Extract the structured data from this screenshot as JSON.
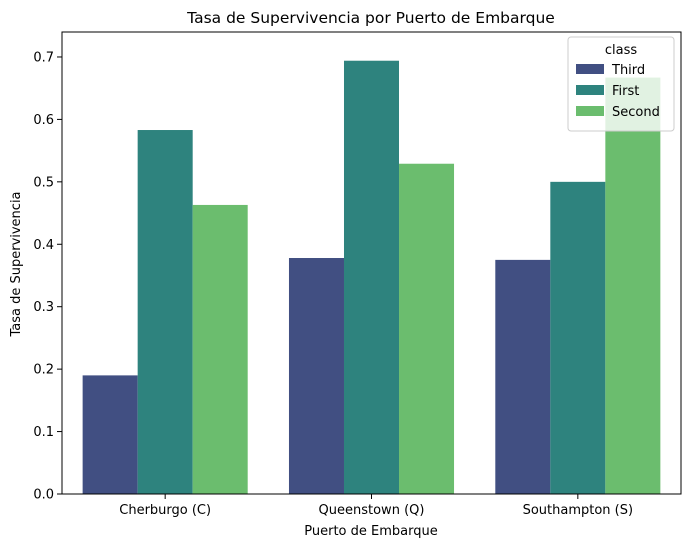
{
  "chart_data": {
    "type": "bar",
    "title": "Tasa de Supervivencia por Puerto de Embarque",
    "xlabel": "Puerto de Embarque",
    "ylabel": "Tasa de Supervivencia",
    "categories": [
      "Cherburgo (C)",
      "Queenstown (Q)",
      "Southampton (S)"
    ],
    "series": [
      {
        "name": "Third",
        "color": "#414f82",
        "values": [
          0.19,
          0.378,
          0.375
        ]
      },
      {
        "name": "First",
        "color": "#2e837e",
        "values": [
          0.583,
          0.694,
          0.5
        ]
      },
      {
        "name": "Second",
        "color": "#6bbd6e",
        "values": [
          0.463,
          0.529,
          0.667
        ]
      }
    ],
    "ylim": [
      0,
      0.74
    ],
    "yticks": [
      0.0,
      0.1,
      0.2,
      0.3,
      0.4,
      0.5,
      0.6,
      0.7
    ],
    "ytick_labels": [
      "0.0",
      "0.1",
      "0.2",
      "0.3",
      "0.4",
      "0.5",
      "0.6",
      "0.7"
    ],
    "grid": false,
    "legend": {
      "title": "class",
      "placement": "top-right"
    }
  }
}
